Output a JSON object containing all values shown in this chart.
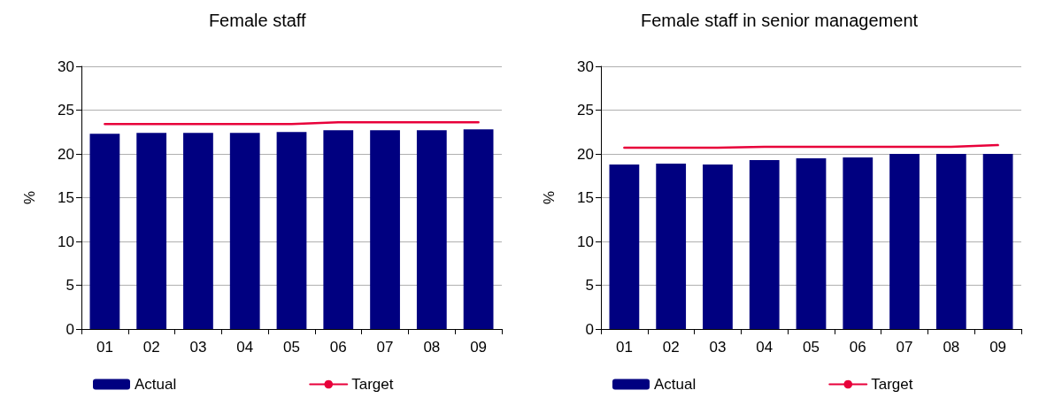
{
  "chart_data": [
    {
      "type": "bar",
      "title": "Female staff ",
      "ylabel": "%",
      "categories": [
        "01",
        "02",
        "03",
        "04",
        "05",
        "06",
        "07",
        "08",
        "09"
      ],
      "series": [
        {
          "name": "Actual",
          "color": "#000080",
          "values": [
            22.3,
            22.4,
            22.4,
            22.4,
            22.5,
            22.7,
            22.7,
            22.7,
            22.8
          ]
        },
        {
          "name": "Target",
          "type": "line",
          "color": "#e8003a",
          "values": [
            23.4,
            23.4,
            23.4,
            23.4,
            23.4,
            23.6,
            23.6,
            23.6,
            23.6
          ]
        }
      ],
      "ylim": [
        0,
        30
      ],
      "yticks": [
        0,
        5,
        10,
        15,
        20,
        25,
        30
      ],
      "grid": "y",
      "legend": "bottom",
      "marker": "none"
    },
    {
      "type": "bar",
      "title": "Female staff in senior management",
      "ylabel": "%",
      "categories": [
        "01",
        "02",
        "03",
        "04",
        "05",
        "06",
        "07",
        "08",
        "09"
      ],
      "series": [
        {
          "name": "Actual",
          "color": "#000080",
          "values": [
            18.8,
            18.9,
            18.8,
            19.3,
            19.5,
            19.6,
            20.0,
            20.0,
            20.0
          ]
        },
        {
          "name": "Target",
          "type": "line",
          "color": "#e8003a",
          "values": [
            20.7,
            20.7,
            20.7,
            20.8,
            20.8,
            20.8,
            20.8,
            20.8,
            21.0
          ]
        }
      ],
      "ylim": [
        0,
        30
      ],
      "yticks": [
        0,
        5,
        10,
        15,
        20,
        25,
        30
      ],
      "grid": "y",
      "legend": "bottom",
      "marker": "none"
    }
  ]
}
